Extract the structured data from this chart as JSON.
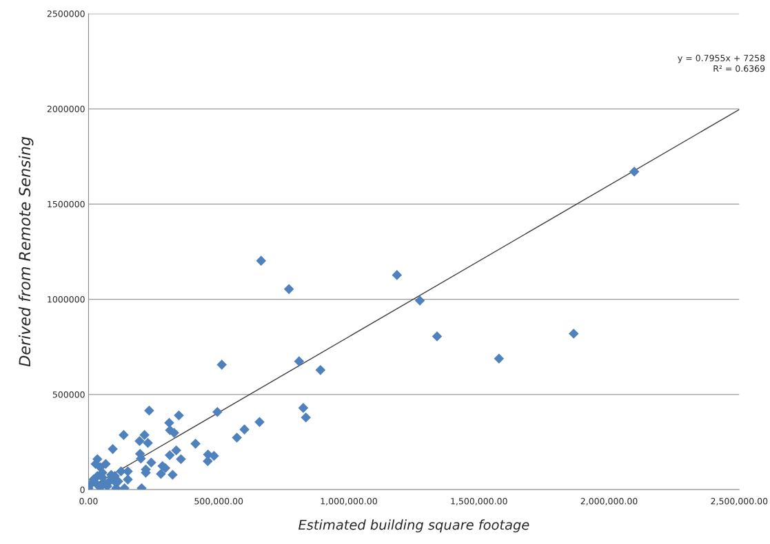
{
  "chart_data": {
    "type": "scatter",
    "xlabel": "Estimated building square footage",
    "ylabel": "Derived from Remote Sensing",
    "annotations": [
      "y = 0.7955x + 7258",
      "R² = 0.6369"
    ],
    "xlim": [
      0,
      2500000
    ],
    "xticks": [
      {
        "value": 0,
        "label": "0.00"
      },
      {
        "value": 500000,
        "label": "500,000.00"
      },
      {
        "value": 1000000,
        "label": "1,000,000.00"
      },
      {
        "value": 1500000,
        "label": "1,500,000.00"
      },
      {
        "value": 2000000,
        "label": "2,000,000.00"
      },
      {
        "value": 2500000,
        "label": "2,500,000.00"
      }
    ],
    "ylim": [
      0,
      2500000
    ],
    "yticks": [
      0,
      500000,
      1000000,
      1500000,
      2000000,
      2500000
    ],
    "grid": "y",
    "marker": "diamond",
    "legend": false,
    "series": [
      {
        "type": "scatter",
        "color": "#4f81bd",
        "x": [
          2097000,
          663000,
          770000,
          1185000,
          1273000,
          1339000,
          1864000,
          1577000,
          512000,
          809000,
          891000,
          825000,
          835000,
          495000,
          657000,
          599000,
          570000,
          458000,
          459000,
          482000,
          411000,
          355000,
          337000,
          312000,
          323000,
          278000,
          284000,
          295000,
          347000,
          233000,
          310000,
          313000,
          329000,
          215000,
          196000,
          228000,
          198000,
          201000,
          241000,
          220000,
          220000,
          204000,
          93000,
          34000,
          27000,
          45000,
          66000,
          106000,
          138000,
          151000,
          151000,
          125000,
          135000,
          80000,
          72000,
          53000,
          34000,
          19000,
          8000,
          0,
          45000,
          61000,
          98000,
          101000,
          87000,
          114000,
          53000,
          34000
        ],
        "values": [
          1670000,
          1202000,
          1053000,
          1127000,
          993000,
          805000,
          819000,
          688000,
          656000,
          674000,
          628000,
          429000,
          379000,
          408000,
          355000,
          316000,
          273000,
          149000,
          184000,
          177000,
          241000,
          160000,
          206000,
          181000,
          78000,
          82000,
          124000,
          113000,
          390000,
          415000,
          351000,
          312000,
          298000,
          287000,
          255000,
          245000,
          188000,
          163000,
          142000,
          106000,
          89000,
          7000,
          213000,
          160000,
          135000,
          117000,
          135000,
          7000,
          7000,
          96000,
          53000,
          96000,
          287000,
          43000,
          18000,
          64000,
          71000,
          53000,
          28000,
          7000,
          11000,
          35000,
          46000,
          71000,
          78000,
          43000,
          89000,
          25000
        ]
      },
      {
        "type": "line",
        "color": "#404040",
        "marker": "none",
        "x": [
          0,
          2500000
        ],
        "values": [
          7000,
          1996000
        ]
      }
    ]
  }
}
